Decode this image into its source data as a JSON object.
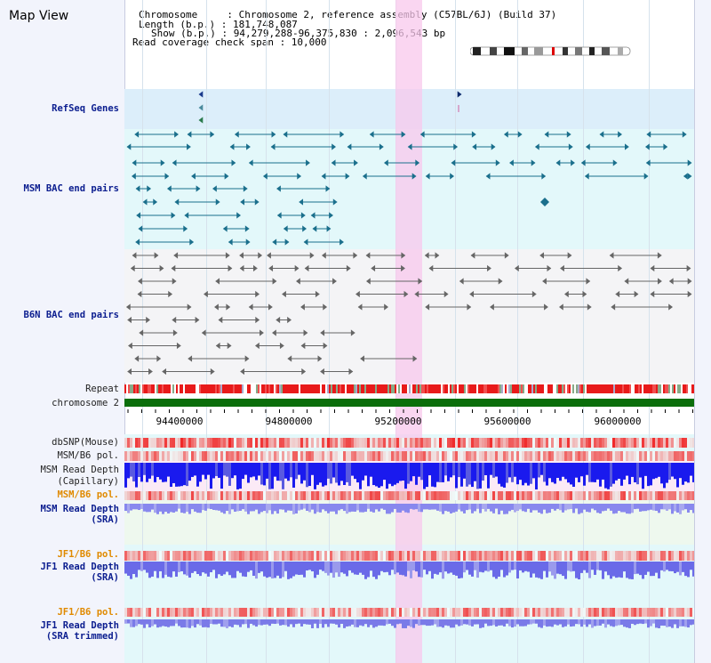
{
  "app": {
    "title": "Map View"
  },
  "header": {
    "chromosome": "Chromosome     : Chromosome 2, reference assembly (C57BL/6J) (Build 37)",
    "length": "Length (b.p.) : 181,748,087",
    "show": "Show (b.p.) : 94,279,288-96,375,830 : 2,096,543 bp",
    "coverage": "Read coverage check span : 10,000"
  },
  "tracks": {
    "refseq": "RefSeq Genes",
    "msm_bac": "MSM BAC end pairs",
    "b6n_bac": "B6N BAC end pairs",
    "repeat": "Repeat",
    "chromosome": "chromosome 2",
    "dbsnp": "dbSNP(Mouse)",
    "msm_b6_pol": "MSM/B6 pol.",
    "msm_read_depth_cap_1": "MSM Read Depth",
    "msm_read_depth_cap_2": "(Capillary)",
    "msm_b6_pol_sra": "MSM/B6 pol.",
    "msm_read_depth_sra_1": "MSM Read Depth",
    "msm_read_depth_sra_2": "(SRA)",
    "jf1_b6_pol": "JF1/B6 pol.",
    "jf1_read_depth_1": "JF1 Read Depth",
    "jf1_read_depth_2": "(SRA)",
    "jf1_b6_pol_trim": "JF1/B6 pol.",
    "jf1_read_depth_trim_1": "JF1 Read Depth",
    "jf1_read_depth_trim_2": "(SRA trimmed)"
  },
  "axis": {
    "ticks": [
      "94400000",
      "94800000",
      "95200000",
      "95600000",
      "96000000"
    ]
  },
  "colors": {
    "refseq_bg": "#dceefa",
    "msm_bg": "#e3f8fa",
    "b6n_bg": "#f4f4f6",
    "highlight": "#f8d6f0",
    "bac_blue": "#1a6f8c",
    "bac_gray": "#666666",
    "repeat_red": "#e81a1a",
    "chrom_green": "#0b6e0b",
    "depth_blue": "#1a1aee",
    "depth_light": "#8888ee"
  },
  "icons": {
    "gene": "triangle-marker-icon",
    "bac": "bac-end-marker-icon",
    "chromosome": "chromosome-ideogram-icon"
  }
}
